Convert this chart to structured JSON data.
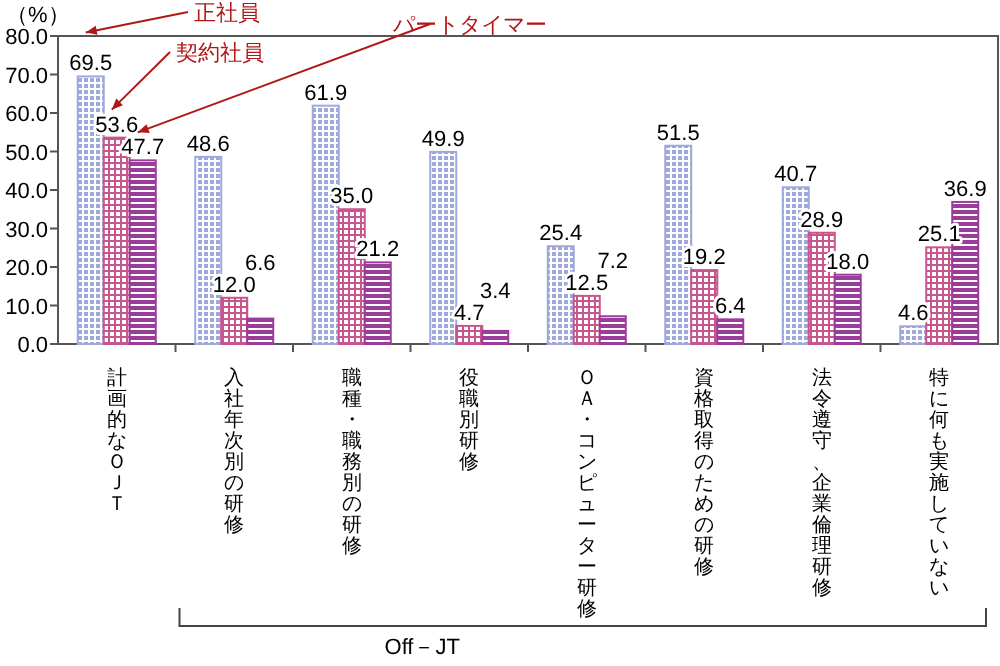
{
  "chart_data": {
    "type": "bar",
    "ylabel": "（%）",
    "categories": [
      "計画的なＯＪＴ",
      "入社年次別の研修",
      "職種・職務別の研修",
      "役職別研修",
      "ＯＡ・コンピューター研修",
      "資格取得のための研修",
      "法令遵守、企業倫理研修",
      "特に何も実施していない"
    ],
    "series": [
      {
        "color": "#9fa8dc",
        "values": [
          69.5,
          48.6,
          61.9,
          49.9,
          25.4,
          51.5,
          40.7,
          4.6
        ],
        "value_labels": [
          "69.5",
          "48.6",
          "61.9",
          "49.9",
          "25.4",
          "51.5",
          "40.7",
          "4.6"
        ]
      },
      {
        "color": "#c8558c",
        "values": [
          53.6,
          12.0,
          35.0,
          4.7,
          12.5,
          19.2,
          28.9,
          25.1
        ],
        "value_labels": [
          "53.6",
          "12.0",
          "35.0",
          "4.7",
          "12.5",
          "19.2",
          "28.9",
          "25.1"
        ]
      },
      {
        "color": "#9a3c9a",
        "values": [
          47.7,
          6.6,
          21.2,
          3.4,
          7.2,
          6.4,
          18.0,
          36.9
        ],
        "value_labels": [
          "47.7",
          "6.6",
          "21.2",
          "3.4",
          "7.2",
          "6.4",
          "18.0",
          "36.9"
        ]
      }
    ],
    "ylim": [
      0,
      80
    ],
    "yticks": [
      {
        "value": 0,
        "label": "0.0"
      },
      {
        "value": 10,
        "label": "10.0"
      },
      {
        "value": 20,
        "label": "20.0"
      },
      {
        "value": 30,
        "label": "30.0"
      },
      {
        "value": 40,
        "label": "40.0"
      },
      {
        "value": 50,
        "label": "50.0"
      },
      {
        "value": 60,
        "label": "60.0"
      },
      {
        "value": 70,
        "label": "70.0"
      },
      {
        "value": 80,
        "label": "80.0"
      }
    ],
    "annotations": [
      "正社員",
      "契約社員",
      "パートタイマー",
      "Off－JT"
    ]
  }
}
